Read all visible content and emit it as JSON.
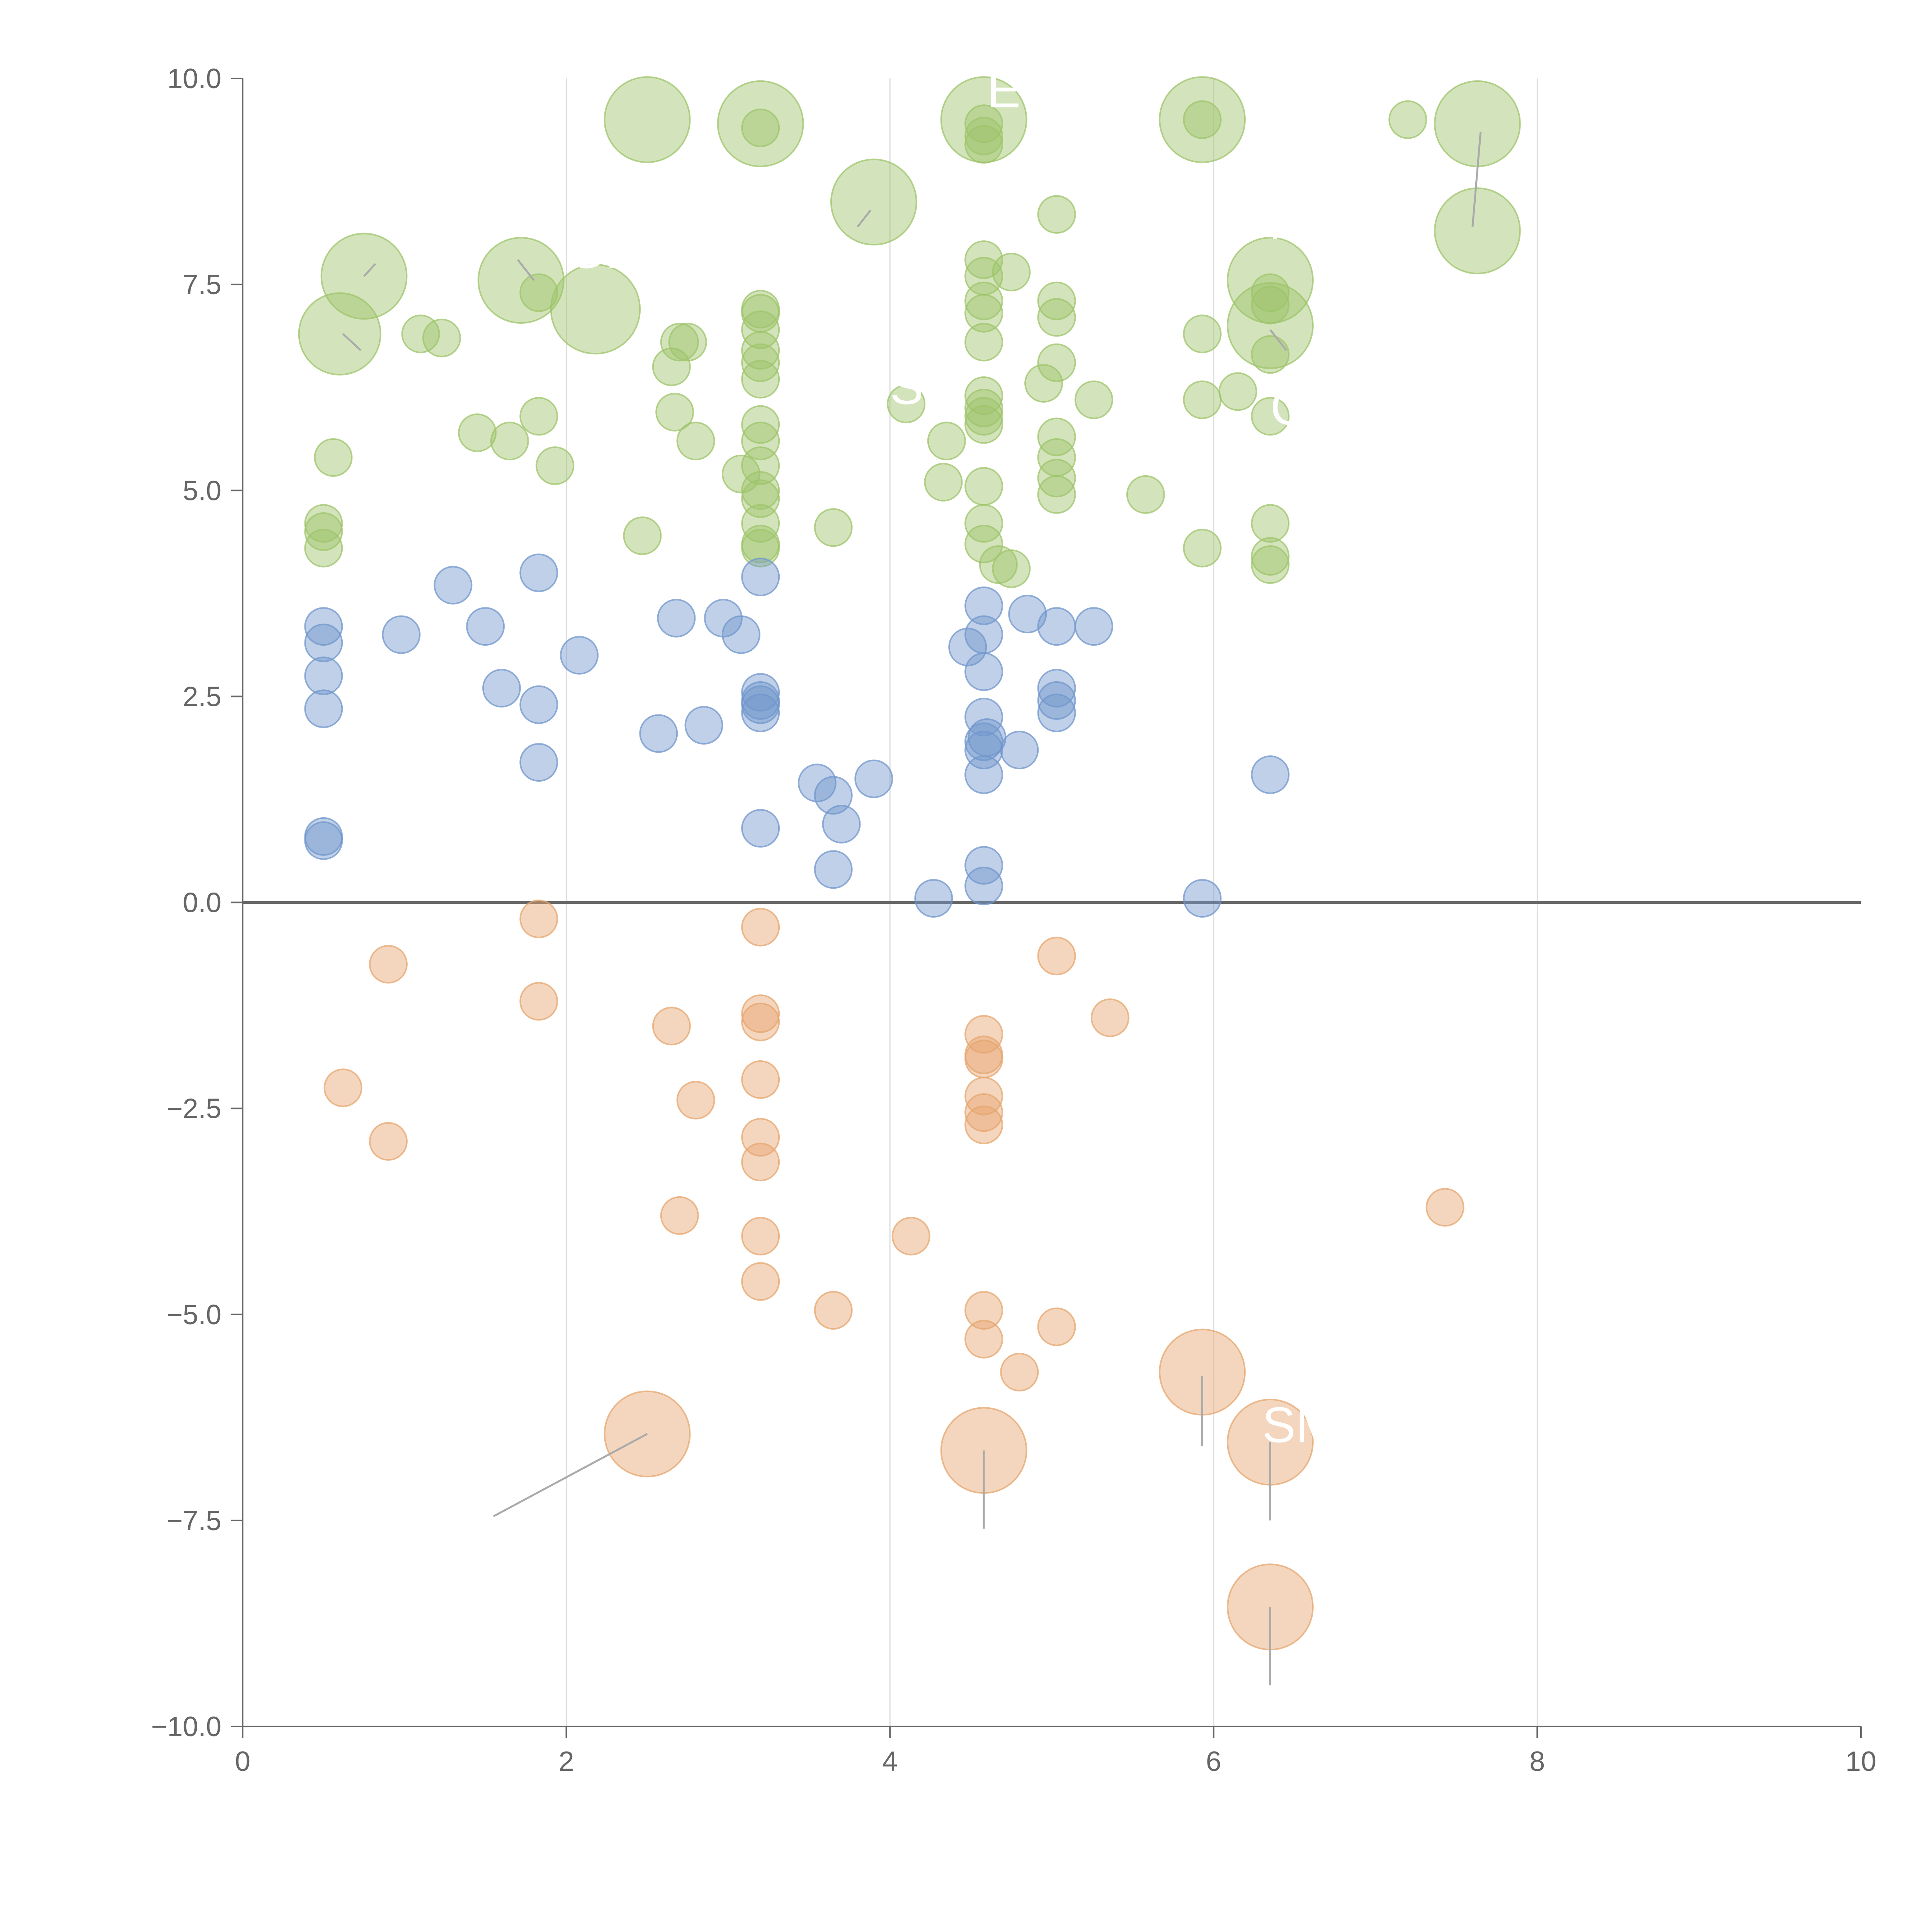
{
  "chart_data": {
    "type": "scatter",
    "title": "",
    "xlabel": "",
    "ylabel": "",
    "xlim": [
      0,
      10
    ],
    "ylim": [
      -10,
      10
    ],
    "x_ticks": [
      0,
      2,
      4,
      6,
      8,
      10
    ],
    "x_tick_labels": [
      "0",
      "2",
      "4",
      "6",
      "8",
      "10"
    ],
    "y_ticks": [
      10,
      7.5,
      5,
      2.5,
      0,
      -2.5,
      -5,
      -7.5,
      -10
    ],
    "y_tick_labels": [
      "10.0",
      "7.5",
      "5.0",
      "2.5",
      "0.0",
      "−2.5",
      "−5.0",
      "−7.5",
      "−10.0"
    ],
    "grid": "vertical",
    "zero_line": true,
    "colors": {
      "high": "#9dc46a",
      "mid": "#7096cc",
      "low": "#e6a56e",
      "leader": "#aaaaaa",
      "axis": "#666666"
    },
    "series": [
      {
        "name": "high",
        "color": "#9dc46a",
        "points": [
          [
            0.5,
            4.6,
            1
          ],
          [
            0.5,
            4.5,
            1
          ],
          [
            0.5,
            4.3,
            1
          ],
          [
            0.56,
            5.4,
            1
          ],
          [
            0.6,
            6.9,
            2.2
          ],
          [
            0.75,
            7.6,
            2.3
          ],
          [
            1.1,
            6.9,
            1
          ],
          [
            1.23,
            6.85,
            1
          ],
          [
            1.45,
            5.7,
            1
          ],
          [
            1.65,
            5.6,
            1
          ],
          [
            1.72,
            7.55,
            2.3
          ],
          [
            1.83,
            5.9,
            1
          ],
          [
            1.83,
            7.4,
            1
          ],
          [
            1.93,
            5.3,
            1
          ],
          [
            2.18,
            7.2,
            2.4
          ],
          [
            2.47,
            4.45,
            1
          ],
          [
            2.5,
            9.5,
            2.3
          ],
          [
            2.65,
            6.5,
            1
          ],
          [
            2.67,
            5.95,
            1
          ],
          [
            2.7,
            6.8,
            1
          ],
          [
            2.75,
            6.8,
            1
          ],
          [
            2.8,
            5.6,
            1
          ],
          [
            3.08,
            5.2,
            1
          ],
          [
            3.2,
            9.45,
            2.3
          ],
          [
            3.2,
            9.4,
            1
          ],
          [
            3.2,
            7.2,
            1
          ],
          [
            3.2,
            7.15,
            1
          ],
          [
            3.2,
            6.95,
            1
          ],
          [
            3.2,
            6.7,
            1
          ],
          [
            3.2,
            6.55,
            1
          ],
          [
            3.2,
            6.35,
            1
          ],
          [
            3.2,
            5.8,
            1
          ],
          [
            3.2,
            5.6,
            1
          ],
          [
            3.2,
            5.3,
            1
          ],
          [
            3.2,
            5.0,
            1
          ],
          [
            3.2,
            4.9,
            1
          ],
          [
            3.2,
            4.6,
            1
          ],
          [
            3.2,
            4.35,
            1
          ],
          [
            3.2,
            4.3,
            1
          ],
          [
            3.65,
            4.55,
            1
          ],
          [
            3.9,
            8.5,
            2.3
          ],
          [
            4.1,
            6.05,
            1
          ],
          [
            4.35,
            5.6,
            1
          ],
          [
            4.33,
            5.1,
            1
          ],
          [
            4.58,
            9.5,
            2.3
          ],
          [
            4.58,
            9.45,
            1
          ],
          [
            4.58,
            9.2,
            1
          ],
          [
            4.58,
            9.3,
            1
          ],
          [
            4.58,
            7.8,
            1
          ],
          [
            4.58,
            7.6,
            1
          ],
          [
            4.58,
            7.3,
            1
          ],
          [
            4.58,
            7.15,
            1
          ],
          [
            4.58,
            6.8,
            1
          ],
          [
            4.58,
            6.15,
            1
          ],
          [
            4.58,
            6.0,
            1
          ],
          [
            4.58,
            5.9,
            1
          ],
          [
            4.58,
            5.8,
            1
          ],
          [
            4.58,
            5.05,
            1
          ],
          [
            4.58,
            4.6,
            1
          ],
          [
            4.58,
            4.35,
            1
          ],
          [
            4.67,
            4.1,
            1
          ],
          [
            4.75,
            7.65,
            1
          ],
          [
            4.75,
            4.05,
            1
          ],
          [
            4.95,
            6.3,
            1
          ],
          [
            5.03,
            8.35,
            1
          ],
          [
            5.03,
            7.3,
            1
          ],
          [
            5.03,
            7.1,
            1
          ],
          [
            5.03,
            6.55,
            1
          ],
          [
            5.03,
            5.65,
            1
          ],
          [
            5.03,
            5.4,
            1
          ],
          [
            5.03,
            5.15,
            1
          ],
          [
            5.03,
            4.95,
            1
          ],
          [
            5.26,
            6.1,
            1
          ],
          [
            5.58,
            4.95,
            1
          ],
          [
            5.93,
            9.5,
            2.3
          ],
          [
            5.93,
            9.5,
            1
          ],
          [
            5.93,
            6.9,
            1
          ],
          [
            5.93,
            6.1,
            1
          ],
          [
            5.93,
            4.3,
            1
          ],
          [
            6.15,
            6.2,
            1
          ],
          [
            6.35,
            7.55,
            2.3
          ],
          [
            6.35,
            7.4,
            1
          ],
          [
            6.35,
            7.25,
            1
          ],
          [
            6.35,
            7.0,
            2.3
          ],
          [
            6.35,
            6.65,
            1
          ],
          [
            6.35,
            5.9,
            1
          ],
          [
            6.35,
            4.6,
            1
          ],
          [
            6.35,
            4.2,
            1
          ],
          [
            6.35,
            4.1,
            1
          ],
          [
            7.2,
            9.5,
            1
          ],
          [
            7.63,
            9.45,
            2.3
          ],
          [
            7.63,
            8.15,
            2.3
          ]
        ]
      },
      {
        "name": "mid",
        "color": "#7096cc",
        "points": [
          [
            0.5,
            3.35,
            1
          ],
          [
            0.5,
            3.15,
            1
          ],
          [
            0.5,
            2.75,
            1
          ],
          [
            0.5,
            2.35,
            1
          ],
          [
            0.5,
            0.8,
            1
          ],
          [
            0.5,
            0.75,
            1
          ],
          [
            0.98,
            3.25,
            1
          ],
          [
            1.3,
            3.85,
            1
          ],
          [
            1.5,
            3.35,
            1
          ],
          [
            1.6,
            2.6,
            1
          ],
          [
            1.83,
            4.0,
            1
          ],
          [
            1.83,
            2.4,
            1
          ],
          [
            1.83,
            1.7,
            1
          ],
          [
            2.08,
            3.0,
            1
          ],
          [
            2.57,
            2.05,
            1
          ],
          [
            2.68,
            3.45,
            1
          ],
          [
            2.85,
            2.15,
            1
          ],
          [
            2.97,
            3.45,
            1
          ],
          [
            3.08,
            3.25,
            1
          ],
          [
            3.2,
            3.95,
            1
          ],
          [
            3.2,
            2.55,
            1
          ],
          [
            3.2,
            2.45,
            1
          ],
          [
            3.2,
            2.4,
            1
          ],
          [
            3.2,
            2.3,
            1
          ],
          [
            3.2,
            0.9,
            1
          ],
          [
            3.55,
            1.45,
            1
          ],
          [
            3.65,
            1.3,
            1
          ],
          [
            3.65,
            0.4,
            1
          ],
          [
            3.7,
            0.95,
            1
          ],
          [
            3.9,
            1.5,
            1
          ],
          [
            4.27,
            0.05,
            1
          ],
          [
            4.48,
            3.1,
            1
          ],
          [
            4.58,
            3.6,
            1
          ],
          [
            4.58,
            3.25,
            1
          ],
          [
            4.58,
            2.8,
            1
          ],
          [
            4.58,
            2.25,
            1
          ],
          [
            4.58,
            1.95,
            1
          ],
          [
            4.58,
            1.85,
            1
          ],
          [
            4.58,
            1.55,
            1
          ],
          [
            4.58,
            0.45,
            1
          ],
          [
            4.58,
            0.2,
            1
          ],
          [
            4.6,
            2.0,
            1
          ],
          [
            4.8,
            1.85,
            1
          ],
          [
            4.85,
            3.5,
            1
          ],
          [
            5.03,
            3.35,
            1
          ],
          [
            5.03,
            2.6,
            1
          ],
          [
            5.03,
            2.45,
            1
          ],
          [
            5.03,
            2.3,
            1
          ],
          [
            5.26,
            3.35,
            1
          ],
          [
            5.93,
            0.05,
            1
          ],
          [
            6.35,
            1.55,
            1
          ]
        ]
      },
      {
        "name": "low",
        "color": "#e6a56e",
        "points": [
          [
            0.62,
            -2.25,
            1
          ],
          [
            0.9,
            -0.75,
            1
          ],
          [
            0.9,
            -2.9,
            1
          ],
          [
            1.83,
            -0.2,
            1
          ],
          [
            1.83,
            -1.2,
            1
          ],
          [
            2.5,
            -6.45,
            2.3
          ],
          [
            2.65,
            -1.5,
            1
          ],
          [
            2.7,
            -3.8,
            1
          ],
          [
            2.8,
            -2.4,
            1
          ],
          [
            3.2,
            -0.3,
            1
          ],
          [
            3.2,
            -1.35,
            1
          ],
          [
            3.2,
            -1.45,
            1
          ],
          [
            3.2,
            -2.15,
            1
          ],
          [
            3.2,
            -2.85,
            1
          ],
          [
            3.2,
            -3.15,
            1
          ],
          [
            3.2,
            -4.05,
            1
          ],
          [
            3.2,
            -4.6,
            1
          ],
          [
            3.65,
            -4.95,
            1
          ],
          [
            4.13,
            -4.05,
            1
          ],
          [
            4.58,
            -1.6,
            1
          ],
          [
            4.58,
            -1.85,
            1
          ],
          [
            4.58,
            -1.9,
            1
          ],
          [
            4.58,
            -2.35,
            1
          ],
          [
            4.58,
            -2.55,
            1
          ],
          [
            4.58,
            -2.7,
            1
          ],
          [
            4.58,
            -4.95,
            1
          ],
          [
            4.58,
            -5.3,
            1
          ],
          [
            4.58,
            -6.65,
            2.3
          ],
          [
            4.8,
            -5.7,
            1
          ],
          [
            5.03,
            -0.65,
            1
          ],
          [
            5.03,
            -5.15,
            1
          ],
          [
            5.36,
            -1.4,
            1
          ],
          [
            5.93,
            -5.7,
            2.3
          ],
          [
            6.35,
            -6.55,
            2.3
          ],
          [
            6.35,
            -8.55,
            2.3
          ],
          [
            7.43,
            -3.7,
            1
          ]
        ]
      }
    ],
    "annotations": [
      {
        "text": "GE",
        "x": 2.0,
        "y": 7.7
      },
      {
        "text": "E",
        "x": 4.6,
        "y": 9.65
      },
      {
        "text": "GM",
        "x": 6.1,
        "y": 8.05
      },
      {
        "text": "S",
        "x": 4.0,
        "y": 6.05
      },
      {
        "text": "C",
        "x": 6.35,
        "y": 5.8
      },
      {
        "text": "SM",
        "x": 6.3,
        "y": -6.55
      }
    ],
    "leader_lines": [
      [
        2.5,
        -6.45,
        1.55,
        -7.45
      ],
      [
        4.58,
        -6.65,
        4.58,
        -7.6
      ],
      [
        5.93,
        -5.75,
        5.93,
        -6.6
      ],
      [
        6.35,
        -6.55,
        6.35,
        -7.5
      ],
      [
        6.35,
        -8.55,
        6.35,
        -9.5
      ],
      [
        0.62,
        6.9,
        0.73,
        6.7
      ],
      [
        0.82,
        7.75,
        0.75,
        7.6
      ],
      [
        1.7,
        7.8,
        1.8,
        7.55
      ],
      [
        3.88,
        8.4,
        3.8,
        8.2
      ],
      [
        6.35,
        6.95,
        6.45,
        6.7
      ],
      [
        7.65,
        9.35,
        7.6,
        8.2
      ]
    ]
  }
}
